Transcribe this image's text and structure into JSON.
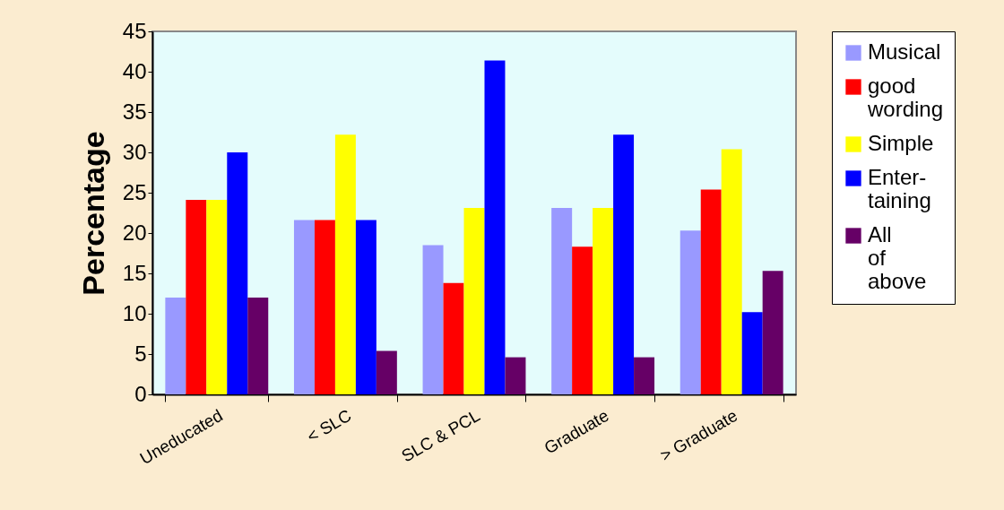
{
  "chart_data": {
    "type": "bar",
    "ylabel": "Percentage",
    "categories": [
      "Uneducated",
      "< SLC",
      "SLC & PCL",
      "Graduate",
      "> Graduate"
    ],
    "series": [
      {
        "name": "Musical",
        "color": "#9999ff",
        "values": [
          12,
          21.6,
          18.5,
          23.1,
          20.3
        ]
      },
      {
        "name": "good wording",
        "color": "#ff0000",
        "values": [
          24.1,
          21.6,
          13.8,
          18.3,
          25.4
        ]
      },
      {
        "name": "Simple",
        "color": "#ffff00",
        "values": [
          24.1,
          32.2,
          23.1,
          23.1,
          30.4
        ]
      },
      {
        "name": "Enter-taining",
        "color": "#0000ff",
        "values": [
          30,
          21.6,
          41.4,
          32.2,
          10.2
        ]
      },
      {
        "name": "All of above",
        "color": "#660066",
        "values": [
          12,
          5.4,
          4.6,
          4.6,
          15.3
        ]
      }
    ],
    "ylim": [
      0,
      45
    ],
    "yticks": [
      0,
      5,
      10,
      15,
      20,
      25,
      30,
      35,
      40,
      45
    ],
    "grid": false,
    "legend": "right"
  }
}
